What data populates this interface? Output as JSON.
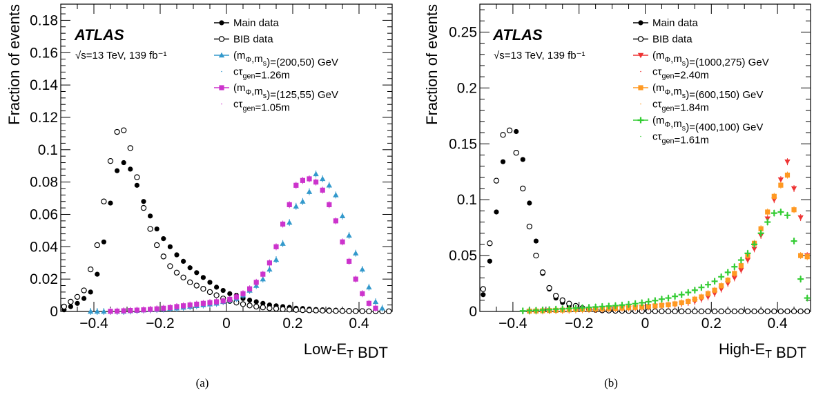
{
  "chart_data": [
    {
      "type": "scatter",
      "panel": "(a)",
      "experiment": "ATLAS",
      "energy_lumi": "√s=13 TeV, 139 fb⁻¹",
      "xlabel": "Low-E_T BDT",
      "ylabel": "Fraction of events",
      "xlim": [
        -0.5,
        0.5
      ],
      "ylim": [
        0,
        0.19
      ],
      "xticks": [
        -0.4,
        -0.2,
        0,
        0.2,
        0.4
      ],
      "xtick_labels": [
        "−0.4",
        "−0.2",
        "0",
        "0.2",
        "0.4"
      ],
      "yticks": [
        0,
        0.02,
        0.04,
        0.06,
        0.08,
        0.1,
        0.12,
        0.14,
        0.16,
        0.18
      ],
      "ytick_labels": [
        "0",
        "0.02",
        "0.04",
        "0.06",
        "0.08",
        "0.1",
        "0.12",
        "0.14",
        "0.16",
        "0.18"
      ],
      "grid": false,
      "legend_position": "top-right",
      "series": [
        {
          "name": "Main data",
          "marker": "filled-circle",
          "color": "#000000",
          "x": [
            -0.49,
            -0.47,
            -0.45,
            -0.43,
            -0.41,
            -0.39,
            -0.37,
            -0.35,
            -0.33,
            -0.31,
            -0.29,
            -0.27,
            -0.25,
            -0.23,
            -0.21,
            -0.19,
            -0.17,
            -0.15,
            -0.13,
            -0.11,
            -0.09,
            -0.07,
            -0.05,
            -0.03,
            -0.01,
            0.01,
            0.03,
            0.05,
            0.07,
            0.09,
            0.11,
            0.13,
            0.15,
            0.17,
            0.19,
            0.21,
            0.23,
            0.25,
            0.27,
            0.29,
            0.31,
            0.33,
            0.35,
            0.37,
            0.39,
            0.41,
            0.43,
            0.45,
            0.47,
            0.49
          ],
          "y": [
            0.001,
            0.003,
            0.005,
            0.008,
            0.012,
            0.023,
            0.043,
            0.067,
            0.087,
            0.092,
            0.088,
            0.078,
            0.068,
            0.059,
            0.051,
            0.045,
            0.04,
            0.035,
            0.031,
            0.027,
            0.024,
            0.021,
            0.018,
            0.015,
            0.013,
            0.011,
            0.01,
            0.008,
            0.007,
            0.006,
            0.005,
            0.004,
            0.0035,
            0.003,
            0.0025,
            0.002,
            0.0018,
            0.0015,
            0.0012,
            0.001,
            0.0009,
            0.0008,
            0.0007,
            0.0006,
            0.0005,
            0.0004,
            0.0003,
            0.0003,
            0.0002,
            0.0002
          ]
        },
        {
          "name": "BIB data",
          "marker": "open-circle",
          "color": "#000000",
          "x": [
            -0.49,
            -0.47,
            -0.45,
            -0.43,
            -0.41,
            -0.39,
            -0.37,
            -0.35,
            -0.33,
            -0.31,
            -0.29,
            -0.27,
            -0.25,
            -0.23,
            -0.21,
            -0.19,
            -0.17,
            -0.15,
            -0.13,
            -0.11,
            -0.09,
            -0.07,
            -0.05,
            -0.03,
            -0.01,
            0.01,
            0.03,
            0.05,
            0.07,
            0.09,
            0.11,
            0.13,
            0.15,
            0.17,
            0.19,
            0.21,
            0.23,
            0.25,
            0.27,
            0.29,
            0.31,
            0.33,
            0.35,
            0.37,
            0.39,
            0.41,
            0.43,
            0.45,
            0.47,
            0.49
          ],
          "y": [
            0.003,
            0.006,
            0.009,
            0.013,
            0.026,
            0.041,
            0.068,
            0.093,
            0.111,
            0.112,
            0.101,
            0.083,
            0.064,
            0.051,
            0.041,
            0.034,
            0.028,
            0.024,
            0.021,
            0.018,
            0.016,
            0.014,
            0.012,
            0.01,
            0.008,
            0.0065,
            0.0055,
            0.0045,
            0.0037,
            0.003,
            0.0025,
            0.002,
            0.0017,
            0.0014,
            0.0012,
            0.001,
            0.0008,
            0.0007,
            0.0006,
            0.0005,
            0.0004,
            0.0003,
            0.0003,
            0.0002,
            0.0002,
            0.0002,
            0.0001,
            0.0001,
            0.0001,
            0.0001
          ]
        },
        {
          "name": "(m_Φ,m_s)=(200,50) GeV",
          "extra_label": "cτ_gen=1.26m",
          "marker": "triangle-up",
          "color": "#3399cc",
          "x": [
            -0.41,
            -0.39,
            -0.37,
            -0.35,
            -0.33,
            -0.31,
            -0.29,
            -0.27,
            -0.25,
            -0.23,
            -0.21,
            -0.19,
            -0.17,
            -0.15,
            -0.13,
            -0.11,
            -0.09,
            -0.07,
            -0.05,
            -0.03,
            -0.01,
            0.01,
            0.03,
            0.05,
            0.07,
            0.09,
            0.11,
            0.13,
            0.15,
            0.17,
            0.19,
            0.21,
            0.23,
            0.25,
            0.27,
            0.29,
            0.31,
            0.33,
            0.35,
            0.37,
            0.39,
            0.41,
            0.43,
            0.45,
            0.47
          ],
          "y": [
            0.0,
            0.0,
            0.0,
            0.0,
            0.0,
            0.0,
            0.0003,
            0.0005,
            0.0008,
            0.001,
            0.0012,
            0.0015,
            0.0018,
            0.002,
            0.0025,
            0.003,
            0.0035,
            0.004,
            0.0045,
            0.005,
            0.006,
            0.007,
            0.008,
            0.01,
            0.013,
            0.016,
            0.02,
            0.026,
            0.032,
            0.042,
            0.055,
            0.065,
            0.068,
            0.074,
            0.085,
            0.082,
            0.078,
            0.072,
            0.059,
            0.047,
            0.036,
            0.026,
            0.015,
            0.006,
            0.002
          ]
        },
        {
          "name": "(m_Φ,m_s)=(125,55) GeV",
          "extra_label": "cτ_gen=1.05m",
          "marker": "square",
          "color": "#cc33cc",
          "x": [
            -0.35,
            -0.33,
            -0.31,
            -0.29,
            -0.27,
            -0.25,
            -0.23,
            -0.21,
            -0.19,
            -0.17,
            -0.15,
            -0.13,
            -0.11,
            -0.09,
            -0.07,
            -0.05,
            -0.03,
            -0.01,
            0.01,
            0.03,
            0.05,
            0.07,
            0.09,
            0.11,
            0.13,
            0.15,
            0.17,
            0.19,
            0.21,
            0.23,
            0.25,
            0.27,
            0.29,
            0.31,
            0.33,
            0.35,
            0.37,
            0.39,
            0.41,
            0.43,
            0.45
          ],
          "y": [
            0.0001,
            0.0002,
            0.0004,
            0.0006,
            0.0008,
            0.001,
            0.0013,
            0.0016,
            0.002,
            0.0024,
            0.003,
            0.0035,
            0.004,
            0.0045,
            0.005,
            0.0055,
            0.006,
            0.0065,
            0.0075,
            0.009,
            0.011,
            0.014,
            0.018,
            0.023,
            0.03,
            0.04,
            0.054,
            0.066,
            0.078,
            0.081,
            0.082,
            0.08,
            0.075,
            0.066,
            0.056,
            0.043,
            0.031,
            0.02,
            0.011,
            0.005,
            0.002
          ]
        }
      ]
    },
    {
      "type": "scatter",
      "panel": "(b)",
      "experiment": "ATLAS",
      "energy_lumi": "√s=13 TeV, 139 fb⁻¹",
      "xlabel": "High-E_T BDT",
      "ylabel": "Fraction of events",
      "xlim": [
        -0.5,
        0.5
      ],
      "ylim": [
        0,
        0.275
      ],
      "xticks": [
        -0.4,
        -0.2,
        0,
        0.2,
        0.4
      ],
      "xtick_labels": [
        "−0.4",
        "−0.2",
        "0",
        "0.2",
        "0.4"
      ],
      "yticks": [
        0,
        0.05,
        0.1,
        0.15,
        0.2,
        0.25
      ],
      "ytick_labels": [
        "0",
        "0.05",
        "0.1",
        "0.15",
        "0.2",
        "0.25"
      ],
      "grid": false,
      "legend_position": "top-right",
      "series": [
        {
          "name": "Main data",
          "marker": "filled-circle",
          "color": "#000000",
          "x": [
            -0.49,
            -0.47,
            -0.45,
            -0.43,
            -0.41,
            -0.39,
            -0.37,
            -0.35,
            -0.33,
            -0.31,
            -0.29,
            -0.27,
            -0.25,
            -0.23,
            -0.21,
            -0.19,
            -0.17,
            -0.15,
            -0.13,
            -0.11,
            -0.09,
            -0.07,
            -0.05,
            -0.03,
            -0.01,
            0.01,
            0.03,
            0.05,
            0.07,
            0.09,
            0.11,
            0.13,
            0.15,
            0.17,
            0.19,
            0.21,
            0.23,
            0.25,
            0.27,
            0.29,
            0.31,
            0.33,
            0.35,
            0.37,
            0.39,
            0.41,
            0.43,
            0.45,
            0.47,
            0.49
          ],
          "y": [
            0.015,
            0.045,
            0.089,
            0.134,
            0.162,
            0.161,
            0.136,
            0.097,
            0.063,
            0.034,
            0.02,
            0.012,
            0.008,
            0.005,
            0.003,
            0.002,
            0.0015,
            0.001,
            0.0008,
            0.0006,
            0.0005,
            0.0004,
            0.0003,
            0.0003,
            0.0002,
            0.0002,
            0.0002,
            0.0001,
            0.0001,
            0.0001,
            0.0001,
            0.0001,
            0.0001,
            0.0001,
            0.0001,
            0.0001,
            0.0001,
            0.0001,
            0.0001,
            0.0001,
            0.0001,
            0.0001,
            0.0001,
            0.0001,
            0.0001,
            0.0001,
            0.0001,
            0.0001,
            0.0001,
            0.0001
          ]
        },
        {
          "name": "BIB data",
          "marker": "open-circle",
          "color": "#000000",
          "x": [
            -0.49,
            -0.47,
            -0.45,
            -0.43,
            -0.41,
            -0.39,
            -0.37,
            -0.35,
            -0.33,
            -0.31,
            -0.29,
            -0.27,
            -0.25,
            -0.23,
            -0.21,
            -0.19,
            -0.17,
            -0.15,
            -0.13,
            -0.11,
            -0.09,
            -0.07,
            -0.05,
            -0.03,
            -0.01,
            0.01,
            0.03,
            0.05,
            0.07,
            0.09,
            0.11,
            0.13,
            0.15,
            0.17,
            0.19,
            0.21,
            0.23,
            0.25,
            0.27,
            0.29,
            0.31,
            0.33,
            0.35,
            0.37,
            0.39,
            0.41,
            0.43,
            0.45,
            0.47,
            0.49
          ],
          "y": [
            0.02,
            0.061,
            0.117,
            0.158,
            0.162,
            0.142,
            0.11,
            0.076,
            0.05,
            0.035,
            0.021,
            0.014,
            0.01,
            0.007,
            0.005,
            0.003,
            0.002,
            0.0015,
            0.001,
            0.0008,
            0.0006,
            0.0005,
            0.0004,
            0.0003,
            0.0003,
            0.0002,
            0.0002,
            0.0002,
            0.0001,
            0.0001,
            0.0001,
            0.0001,
            0.0001,
            0.0001,
            0.0001,
            0.0001,
            0.0001,
            0.0001,
            0.0001,
            0.0001,
            0.0001,
            0.0001,
            0.0001,
            0.0001,
            0.0001,
            0.0001,
            0.0001,
            0.0001,
            0.0001,
            0.0001
          ]
        },
        {
          "name": "(m_Φ,m_s)=(1000,275) GeV",
          "extra_label": "cτ_gen=2.40m",
          "marker": "triangle-down",
          "color": "#ee3333",
          "x": [
            -0.35,
            -0.33,
            -0.31,
            -0.29,
            -0.27,
            -0.25,
            -0.23,
            -0.21,
            -0.19,
            -0.17,
            -0.15,
            -0.13,
            -0.11,
            -0.09,
            -0.07,
            -0.05,
            -0.03,
            -0.01,
            0.01,
            0.03,
            0.05,
            0.07,
            0.09,
            0.11,
            0.13,
            0.15,
            0.17,
            0.19,
            0.21,
            0.23,
            0.25,
            0.27,
            0.29,
            0.31,
            0.33,
            0.35,
            0.37,
            0.39,
            0.41,
            0.43,
            0.45,
            0.47,
            0.49
          ],
          "y": [
            0.0003,
            0.0004,
            0.0005,
            0.0006,
            0.0008,
            0.001,
            0.0012,
            0.0014,
            0.0016,
            0.0018,
            0.002,
            0.0022,
            0.0024,
            0.0026,
            0.0028,
            0.003,
            0.0032,
            0.0035,
            0.004,
            0.0045,
            0.005,
            0.0055,
            0.006,
            0.007,
            0.008,
            0.009,
            0.011,
            0.013,
            0.016,
            0.02,
            0.025,
            0.03,
            0.037,
            0.046,
            0.056,
            0.068,
            0.083,
            0.1,
            0.118,
            0.134,
            0.11,
            0.084,
            0.05
          ]
        },
        {
          "name": "(m_Φ,m_s)=(600,150) GeV",
          "extra_label": "cτ_gen=1.84m",
          "marker": "square",
          "color": "#ff9922",
          "x": [
            -0.35,
            -0.33,
            -0.31,
            -0.29,
            -0.27,
            -0.25,
            -0.23,
            -0.21,
            -0.19,
            -0.17,
            -0.15,
            -0.13,
            -0.11,
            -0.09,
            -0.07,
            -0.05,
            -0.03,
            -0.01,
            0.01,
            0.03,
            0.05,
            0.07,
            0.09,
            0.11,
            0.13,
            0.15,
            0.17,
            0.19,
            0.21,
            0.23,
            0.25,
            0.27,
            0.29,
            0.31,
            0.33,
            0.35,
            0.37,
            0.39,
            0.41,
            0.43,
            0.45,
            0.47,
            0.49
          ],
          "y": [
            0.0003,
            0.0004,
            0.0006,
            0.0008,
            0.001,
            0.0012,
            0.0014,
            0.0016,
            0.0018,
            0.002,
            0.0022,
            0.0024,
            0.0026,
            0.0028,
            0.003,
            0.0033,
            0.0036,
            0.004,
            0.0045,
            0.005,
            0.0055,
            0.006,
            0.0068,
            0.0078,
            0.009,
            0.011,
            0.013,
            0.016,
            0.019,
            0.023,
            0.028,
            0.034,
            0.041,
            0.05,
            0.061,
            0.074,
            0.089,
            0.103,
            0.113,
            0.122,
            0.091,
            0.05,
            0.049
          ]
        },
        {
          "name": "(m_Φ,m_s)=(400,100) GeV",
          "extra_label": "cτ_gen=1.61m",
          "marker": "plus",
          "color": "#33cc33",
          "x": [
            -0.37,
            -0.35,
            -0.33,
            -0.31,
            -0.29,
            -0.27,
            -0.25,
            -0.23,
            -0.21,
            -0.19,
            -0.17,
            -0.15,
            -0.13,
            -0.11,
            -0.09,
            -0.07,
            -0.05,
            -0.03,
            -0.01,
            0.01,
            0.03,
            0.05,
            0.07,
            0.09,
            0.11,
            0.13,
            0.15,
            0.17,
            0.19,
            0.21,
            0.23,
            0.25,
            0.27,
            0.29,
            0.31,
            0.33,
            0.35,
            0.37,
            0.39,
            0.41,
            0.43,
            0.45,
            0.47,
            0.49
          ],
          "y": [
            0.0005,
            0.0008,
            0.001,
            0.0013,
            0.0016,
            0.002,
            0.0023,
            0.0026,
            0.003,
            0.0033,
            0.0036,
            0.004,
            0.0044,
            0.0048,
            0.0052,
            0.0057,
            0.0063,
            0.007,
            0.0078,
            0.0087,
            0.0097,
            0.011,
            0.012,
            0.0135,
            0.015,
            0.017,
            0.019,
            0.0215,
            0.024,
            0.027,
            0.031,
            0.035,
            0.04,
            0.046,
            0.052,
            0.06,
            0.07,
            0.08,
            0.088,
            0.089,
            0.086,
            0.063,
            0.029,
            0.012
          ]
        }
      ]
    }
  ],
  "captions": [
    "(a)",
    "(b)"
  ]
}
